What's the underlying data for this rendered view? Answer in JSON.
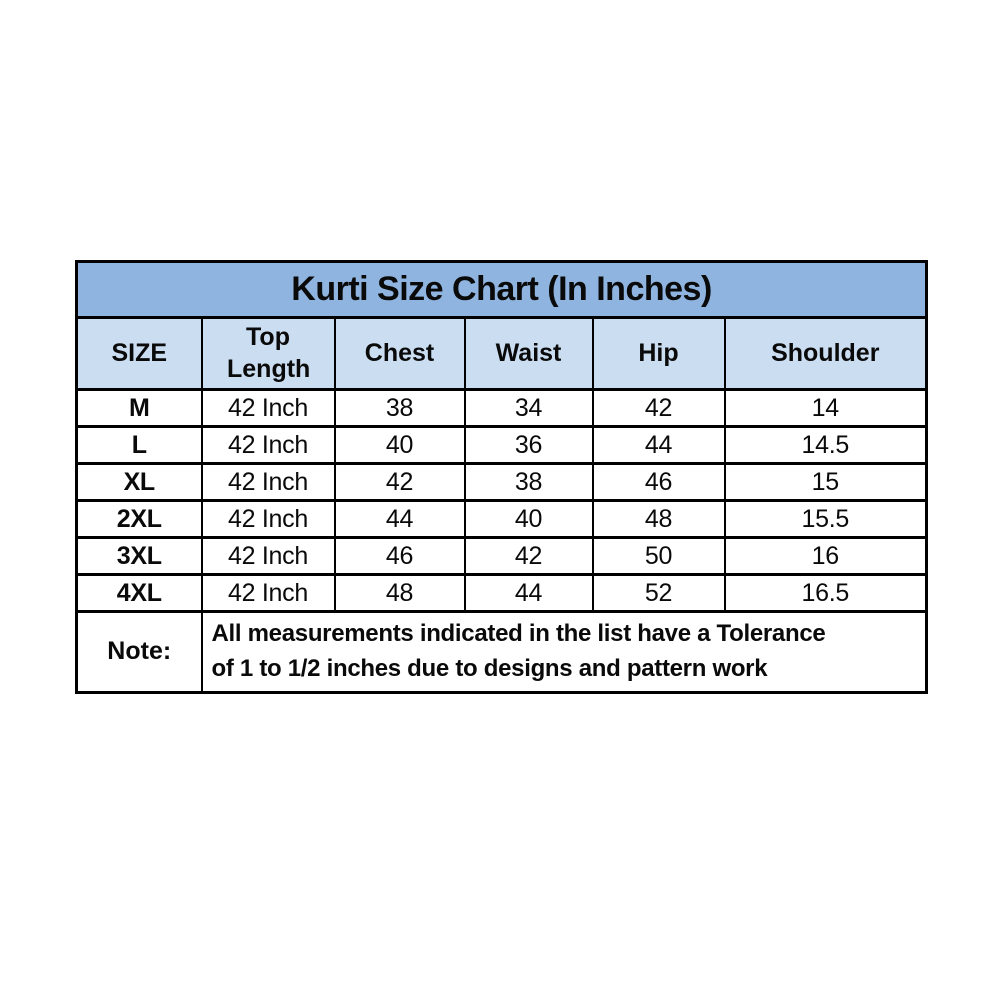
{
  "table": {
    "title": "Kurti Size Chart (In Inches)",
    "columns": [
      "SIZE",
      "Top Length",
      "Chest",
      "Waist",
      "Hip",
      "Shoulder"
    ],
    "rows": [
      {
        "size": "M",
        "top_length": "42 Inch",
        "chest": "38",
        "waist": "34",
        "hip": "42",
        "shoulder": "14"
      },
      {
        "size": "L",
        "top_length": "42 Inch",
        "chest": "40",
        "waist": "36",
        "hip": "44",
        "shoulder": "14.5"
      },
      {
        "size": "XL",
        "top_length": "42 Inch",
        "chest": "42",
        "waist": "38",
        "hip": "46",
        "shoulder": "15"
      },
      {
        "size": "2XL",
        "top_length": "42 Inch",
        "chest": "44",
        "waist": "40",
        "hip": "48",
        "shoulder": "15.5"
      },
      {
        "size": "3XL",
        "top_length": "42 Inch",
        "chest": "46",
        "waist": "42",
        "hip": "50",
        "shoulder": "16"
      },
      {
        "size": "4XL",
        "top_length": "42 Inch",
        "chest": "48",
        "waist": "44",
        "hip": "52",
        "shoulder": "16.5"
      }
    ],
    "note": {
      "label": "Note:",
      "lines": [
        "All measurements indicated in the list have a Tolerance",
        "of 1 to 1/2 inches due to designs and pattern work"
      ]
    },
    "colors": {
      "title_bg": "#8EB4DF",
      "header_bg": "#CBDDF1",
      "row_bg": "#FFFFFF",
      "border": "#000000",
      "text": "#0A0A0A"
    }
  },
  "chart_data": {
    "type": "table",
    "title": "Kurti Size Chart (In Inches)",
    "columns": [
      "SIZE",
      "Top Length",
      "Chest",
      "Waist",
      "Hip",
      "Shoulder"
    ],
    "rows": [
      [
        "M",
        "42 Inch",
        38,
        34,
        42,
        14
      ],
      [
        "L",
        "42 Inch",
        40,
        36,
        44,
        14.5
      ],
      [
        "XL",
        "42 Inch",
        42,
        38,
        46,
        15
      ],
      [
        "2XL",
        "42 Inch",
        44,
        40,
        48,
        15.5
      ],
      [
        "3XL",
        "42 Inch",
        46,
        42,
        50,
        16
      ],
      [
        "4XL",
        "42 Inch",
        48,
        44,
        52,
        16.5
      ]
    ],
    "note": "Note: All measurements indicated in the list have a Tolerance of 1 to 1/2 inches due to designs and pattern work",
    "units": "inches",
    "layout": "title band (blue) + header row (light blue) + 6 white data rows + note row"
  }
}
